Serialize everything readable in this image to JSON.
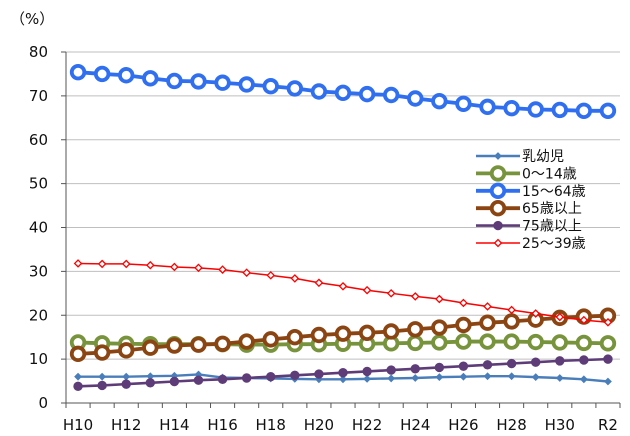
{
  "chart_data": {
    "type": "line",
    "unit_label": "（%）",
    "ylim": [
      0,
      80
    ],
    "yticks": [
      0,
      10,
      20,
      30,
      40,
      50,
      60,
      70,
      80
    ],
    "categories": [
      "H10",
      "H11",
      "H12",
      "H13",
      "H14",
      "H15",
      "H16",
      "H17",
      "H18",
      "H19",
      "H20",
      "H21",
      "H22",
      "H23",
      "H24",
      "H25",
      "H26",
      "H27",
      "H28",
      "H29",
      "H30",
      "R1",
      "R2"
    ],
    "xtick_labels": [
      "H10",
      "H12",
      "H14",
      "H16",
      "H18",
      "H20",
      "H22",
      "H24",
      "H26",
      "H28",
      "H30",
      "R2"
    ],
    "grid": "horizontal",
    "legend_position": "right",
    "series": [
      {
        "name": "乳幼児",
        "color": "#4a7ebb",
        "marker": "diamond",
        "values": [
          6.0,
          6.0,
          6.0,
          6.1,
          6.2,
          6.5,
          5.8,
          5.7,
          5.6,
          5.5,
          5.4,
          5.4,
          5.5,
          5.6,
          5.7,
          5.9,
          6.0,
          6.1,
          6.1,
          5.9,
          5.7,
          5.4,
          4.9
        ]
      },
      {
        "name": "0～14歳",
        "color": "#77933c",
        "marker": "ring",
        "values": [
          13.8,
          13.6,
          13.5,
          13.4,
          13.4,
          13.4,
          13.4,
          13.3,
          13.3,
          13.4,
          13.4,
          13.5,
          13.5,
          13.6,
          13.7,
          13.8,
          14.0,
          14.0,
          14.0,
          13.9,
          13.8,
          13.7,
          13.6
        ]
      },
      {
        "name": "15～64歳",
        "color": "#2f6ff0",
        "marker": "ring",
        "values": [
          75.4,
          75.0,
          74.7,
          74.0,
          73.4,
          73.3,
          73.0,
          72.6,
          72.2,
          71.7,
          71.0,
          70.7,
          70.4,
          70.2,
          69.4,
          68.8,
          68.2,
          67.5,
          67.2,
          66.9,
          66.8,
          66.6,
          66.6
        ]
      },
      {
        "name": "65歳以上",
        "color": "#8b4513",
        "marker": "ring",
        "values": [
          11.2,
          11.5,
          12.0,
          12.6,
          13.1,
          13.3,
          13.5,
          14.0,
          14.5,
          15.0,
          15.5,
          15.8,
          16.0,
          16.3,
          16.8,
          17.2,
          17.8,
          18.3,
          18.6,
          19.0,
          19.4,
          19.7,
          19.9
        ]
      },
      {
        "name": "75歳以上",
        "color": "#5e3c78",
        "marker": "dot",
        "values": [
          3.8,
          4.0,
          4.3,
          4.6,
          4.9,
          5.2,
          5.4,
          5.7,
          6.0,
          6.3,
          6.6,
          6.9,
          7.2,
          7.5,
          7.8,
          8.1,
          8.4,
          8.7,
          9.0,
          9.3,
          9.6,
          9.8,
          10.0
        ]
      },
      {
        "name": "25～39歳",
        "color": "#ff0000",
        "marker": "diamond-open",
        "values": [
          31.8,
          31.7,
          31.7,
          31.4,
          31.0,
          30.8,
          30.4,
          29.7,
          29.1,
          28.4,
          27.4,
          26.6,
          25.7,
          25.0,
          24.3,
          23.7,
          22.8,
          22.0,
          21.2,
          20.4,
          19.6,
          18.9,
          18.4
        ]
      }
    ]
  }
}
